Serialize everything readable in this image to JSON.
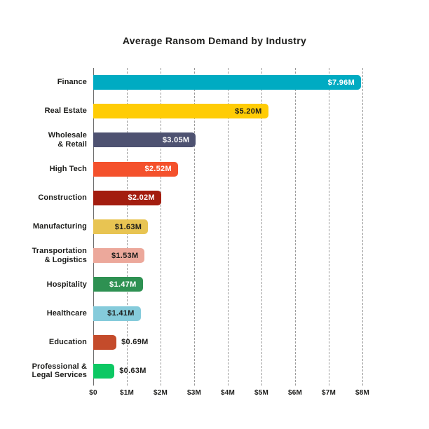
{
  "chart_data": {
    "type": "bar",
    "orientation": "horizontal",
    "title": "Average Ransom Demand by Industry",
    "xlabel": "",
    "ylabel": "",
    "xlim": [
      0,
      8
    ],
    "grid": "vertical-dashed",
    "legend": "none",
    "x_ticks": [
      "$0",
      "$1M",
      "$2M",
      "$3M",
      "$4M",
      "$5M",
      "$6M",
      "$7M",
      "$8M"
    ],
    "categories": [
      "Finance",
      "Real Estate",
      "Wholesale\n& Retail",
      "High Tech",
      "Construction",
      "Manufacturing",
      "Transportation\n& Logistics",
      "Hospitality",
      "Healthcare",
      "Education",
      "Professional &\nLegal Services"
    ],
    "values": [
      7.96,
      5.2,
      3.05,
      2.52,
      2.02,
      1.63,
      1.53,
      1.47,
      1.41,
      0.69,
      0.63
    ],
    "value_labels": [
      "$7.96M",
      "$5.20M",
      "$3.05M",
      "$2.52M",
      "$2.02M",
      "$1.63M",
      "$1.53M",
      "$1.47M",
      "$1.41M",
      "$0.69M",
      "$0.63M"
    ],
    "bar_colors": [
      "#00ABC2",
      "#FFCC05",
      "#4E5271",
      "#F4512C",
      "#A31D0F",
      "#E8C452",
      "#ECA89B",
      "#2E9152",
      "#85CBDB",
      "#C44B2B",
      "#0CC863"
    ],
    "value_label_colors": [
      "#FFFFFF",
      "#1D1D1B",
      "#FFFFFF",
      "#FFFFFF",
      "#FFFFFF",
      "#1D1D1B",
      "#1D1D1B",
      "#FFFFFF",
      "#1D1D1B",
      "#1D1D1B",
      "#1D1D1B"
    ],
    "value_label_positions": [
      "inside",
      "inside",
      "inside",
      "inside",
      "inside",
      "inside",
      "inside",
      "inside",
      "inside",
      "outside",
      "outside"
    ],
    "colors": {
      "background": "#FFFFFF",
      "gridline": "#9B9B9B",
      "zero_axis_line": "#6E6E6E",
      "text": "#1D1D1B"
    }
  }
}
